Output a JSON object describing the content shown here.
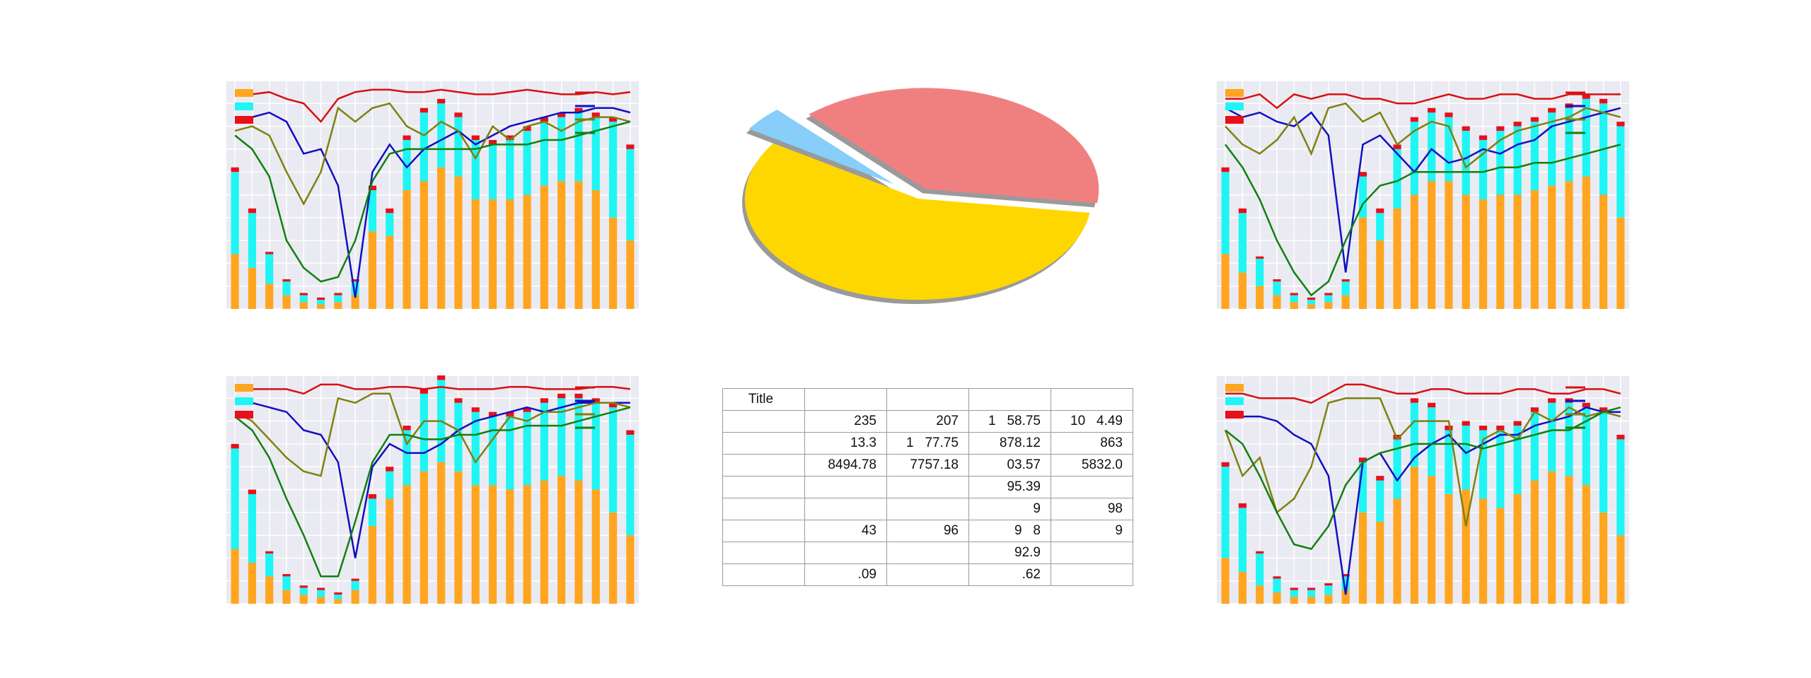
{
  "chart_data": [
    {
      "type": "combo",
      "categories": [
        null,
        null,
        null,
        null,
        null,
        null,
        null,
        null,
        null,
        null,
        null,
        null,
        null,
        null,
        null,
        null,
        null,
        null,
        null,
        null,
        null,
        null,
        null,
        null
      ],
      "ylim": [
        0,
        100
      ],
      "yticks": [
        0,
        10,
        20,
        30,
        40,
        50,
        60,
        70,
        80,
        90,
        100
      ],
      "grid": true,
      "series": [
        {
          "type": "bar",
          "color": "#ffa51f",
          "values": [
            24,
            18,
            11,
            6,
            3,
            2,
            3,
            6,
            34,
            32,
            52,
            56,
            62,
            58,
            48,
            48,
            48,
            50,
            54,
            56,
            56,
            52,
            40,
            30
          ]
        },
        {
          "type": "bar",
          "color": "#1ff5f5",
          "values": [
            36,
            24,
            13,
            6,
            3,
            2,
            3,
            6,
            18,
            10,
            22,
            30,
            28,
            26,
            26,
            24,
            26,
            28,
            28,
            28,
            30,
            32,
            42,
            40
          ]
        },
        {
          "type": "bar",
          "color": "#e8101a",
          "values": [
            2,
            2,
            1,
            1,
            1,
            1,
            1,
            1,
            2,
            2,
            2,
            2,
            2,
            2,
            2,
            2,
            2,
            2,
            2,
            2,
            2,
            2,
            2,
            2
          ]
        },
        {
          "type": "line",
          "color": "#d81010",
          "values": [
            94,
            94,
            95,
            92,
            90,
            82,
            92,
            95,
            96,
            96,
            95,
            95,
            96,
            95,
            94,
            94,
            95,
            96,
            95,
            94,
            94,
            95,
            94,
            95
          ]
        },
        {
          "type": "line",
          "color": "#1010c0",
          "values": [
            84,
            84,
            86,
            82,
            68,
            70,
            54,
            5,
            60,
            72,
            62,
            70,
            74,
            78,
            72,
            76,
            80,
            82,
            84,
            86,
            86,
            88,
            88,
            86
          ]
        },
        {
          "type": "line",
          "color": "#808010",
          "values": [
            78,
            80,
            76,
            60,
            46,
            60,
            88,
            82,
            88,
            90,
            80,
            76,
            82,
            78,
            66,
            80,
            74,
            80,
            82,
            78,
            82,
            84,
            84,
            82
          ]
        },
        {
          "type": "line",
          "color": "#108010",
          "values": [
            76,
            70,
            58,
            30,
            18,
            12,
            14,
            30,
            56,
            68,
            70,
            70,
            70,
            70,
            70,
            72,
            72,
            72,
            74,
            74,
            76,
            78,
            80,
            82
          ]
        }
      ]
    },
    {
      "type": "pie",
      "values": [
        39,
        4,
        57
      ],
      "colors": [
        "#f08080",
        "#87cefa",
        "#ffd700"
      ]
    },
    {
      "type": "combo",
      "categories": [
        null,
        null,
        null,
        null,
        null,
        null,
        null,
        null,
        null,
        null,
        null,
        null,
        null,
        null,
        null,
        null,
        null,
        null,
        null,
        null,
        null,
        null,
        null,
        null
      ],
      "ylim": [
        0,
        100
      ],
      "yticks": [
        0,
        10,
        20,
        30,
        40,
        50,
        60,
        70,
        80,
        90,
        100
      ],
      "grid": true,
      "series": [
        {
          "type": "bar",
          "color": "#ffa51f",
          "values": [
            24,
            16,
            10,
            6,
            3,
            2,
            3,
            6,
            40,
            30,
            44,
            50,
            56,
            56,
            50,
            48,
            50,
            50,
            52,
            54,
            56,
            58,
            50,
            40
          ]
        },
        {
          "type": "bar",
          "color": "#1ff5f5",
          "values": [
            36,
            26,
            12,
            6,
            3,
            2,
            3,
            6,
            18,
            12,
            26,
            32,
            30,
            28,
            28,
            26,
            28,
            30,
            30,
            32,
            32,
            34,
            40,
            40
          ]
        },
        {
          "type": "bar",
          "color": "#e8101a",
          "values": [
            2,
            2,
            1,
            1,
            1,
            1,
            1,
            1,
            2,
            2,
            2,
            2,
            2,
            2,
            2,
            2,
            2,
            2,
            2,
            2,
            2,
            2,
            2,
            2
          ]
        },
        {
          "type": "line",
          "color": "#d81010",
          "values": [
            92,
            92,
            94,
            88,
            94,
            92,
            94,
            94,
            92,
            92,
            90,
            90,
            92,
            94,
            92,
            92,
            94,
            94,
            92,
            92,
            94,
            94,
            94,
            94
          ]
        },
        {
          "type": "line",
          "color": "#1010c0",
          "values": [
            88,
            84,
            86,
            82,
            80,
            86,
            76,
            16,
            72,
            76,
            68,
            60,
            70,
            64,
            66,
            70,
            68,
            72,
            74,
            80,
            82,
            84,
            86,
            88
          ]
        },
        {
          "type": "line",
          "color": "#808010",
          "values": [
            80,
            72,
            68,
            74,
            84,
            68,
            88,
            90,
            82,
            86,
            72,
            78,
            82,
            80,
            62,
            68,
            74,
            78,
            80,
            82,
            84,
            88,
            86,
            84
          ]
        },
        {
          "type": "line",
          "color": "#108010",
          "values": [
            72,
            62,
            48,
            30,
            16,
            6,
            12,
            30,
            46,
            54,
            56,
            60,
            60,
            60,
            60,
            60,
            62,
            62,
            64,
            64,
            66,
            68,
            70,
            72
          ]
        }
      ]
    },
    {
      "type": "combo",
      "categories": [
        null,
        null,
        null,
        null,
        null,
        null,
        null,
        null,
        null,
        null,
        null,
        null,
        null,
        null,
        null,
        null,
        null,
        null,
        null,
        null,
        null,
        null,
        null,
        null
      ],
      "ylim": [
        0,
        100
      ],
      "yticks": [
        0,
        10,
        20,
        30,
        40,
        50,
        60,
        70,
        80,
        90,
        100
      ],
      "grid": true,
      "series": [
        {
          "type": "bar",
          "color": "#ffa51f",
          "values": [
            24,
            18,
            12,
            6,
            4,
            3,
            2,
            6,
            34,
            46,
            52,
            58,
            62,
            58,
            52,
            52,
            50,
            52,
            54,
            56,
            54,
            50,
            40,
            30
          ]
        },
        {
          "type": "bar",
          "color": "#1ff5f5",
          "values": [
            44,
            30,
            10,
            6,
            3,
            3,
            2,
            4,
            12,
            12,
            24,
            34,
            36,
            30,
            32,
            30,
            32,
            32,
            34,
            34,
            36,
            38,
            46,
            44
          ]
        },
        {
          "type": "bar",
          "color": "#e8101a",
          "values": [
            2,
            2,
            1,
            1,
            1,
            1,
            1,
            1,
            2,
            2,
            2,
            2,
            2,
            2,
            2,
            2,
            2,
            2,
            2,
            2,
            2,
            2,
            2,
            2
          ]
        },
        {
          "type": "line",
          "color": "#d81010",
          "values": [
            94,
            94,
            94,
            94,
            92,
            96,
            96,
            94,
            94,
            95,
            95,
            94,
            95,
            94,
            94,
            94,
            95,
            95,
            94,
            94,
            94,
            95,
            95,
            94
          ]
        },
        {
          "type": "line",
          "color": "#1010c0",
          "values": [
            90,
            88,
            86,
            84,
            76,
            74,
            62,
            20,
            60,
            70,
            66,
            66,
            70,
            76,
            80,
            82,
            84,
            86,
            84,
            86,
            88,
            88,
            88,
            88
          ]
        },
        {
          "type": "line",
          "color": "#808010",
          "values": [
            84,
            80,
            72,
            64,
            58,
            56,
            90,
            88,
            92,
            92,
            70,
            80,
            80,
            76,
            62,
            72,
            82,
            80,
            84,
            84,
            86,
            88,
            88,
            86
          ]
        },
        {
          "type": "line",
          "color": "#108010",
          "values": [
            82,
            76,
            64,
            46,
            30,
            12,
            12,
            36,
            62,
            74,
            74,
            72,
            72,
            74,
            74,
            76,
            76,
            78,
            78,
            78,
            80,
            82,
            84,
            86
          ]
        }
      ]
    },
    {
      "type": "combo",
      "categories": [
        null,
        null,
        null,
        null,
        null,
        null,
        null,
        null,
        null,
        null,
        null,
        null,
        null,
        null,
        null,
        null,
        null,
        null,
        null,
        null,
        null,
        null,
        null,
        null
      ],
      "ylim": [
        0,
        100
      ],
      "yticks": [
        0,
        10,
        20,
        30,
        40,
        50,
        60,
        70,
        80,
        90,
        100
      ],
      "grid": true,
      "series": [
        {
          "type": "bar",
          "color": "#ffa51f",
          "values": [
            20,
            14,
            8,
            5,
            3,
            3,
            4,
            6,
            40,
            36,
            46,
            60,
            56,
            48,
            50,
            46,
            42,
            48,
            54,
            58,
            56,
            52,
            40,
            30
          ]
        },
        {
          "type": "bar",
          "color": "#1ff5f5",
          "values": [
            40,
            28,
            14,
            6,
            3,
            3,
            4,
            6,
            22,
            18,
            26,
            28,
            30,
            28,
            28,
            30,
            34,
            30,
            30,
            30,
            32,
            34,
            44,
            42
          ]
        },
        {
          "type": "bar",
          "color": "#e8101a",
          "values": [
            2,
            2,
            1,
            1,
            1,
            1,
            1,
            1,
            2,
            2,
            2,
            2,
            2,
            2,
            2,
            2,
            2,
            2,
            2,
            2,
            2,
            2,
            2,
            2
          ]
        },
        {
          "type": "line",
          "color": "#d81010",
          "values": [
            92,
            92,
            90,
            90,
            90,
            88,
            92,
            96,
            96,
            94,
            92,
            92,
            94,
            94,
            92,
            92,
            92,
            94,
            94,
            92,
            92,
            94,
            94,
            92
          ]
        },
        {
          "type": "line",
          "color": "#1010c0",
          "values": [
            82,
            82,
            82,
            80,
            74,
            70,
            56,
            4,
            62,
            66,
            54,
            64,
            70,
            74,
            66,
            70,
            74,
            74,
            78,
            80,
            82,
            86,
            84,
            84
          ]
        },
        {
          "type": "line",
          "color": "#808010",
          "values": [
            76,
            56,
            64,
            40,
            46,
            60,
            88,
            90,
            90,
            90,
            72,
            80,
            80,
            80,
            34,
            72,
            76,
            72,
            84,
            80,
            86,
            82,
            84,
            82
          ]
        },
        {
          "type": "line",
          "color": "#108010",
          "values": [
            76,
            70,
            56,
            40,
            26,
            24,
            34,
            52,
            62,
            66,
            68,
            70,
            70,
            70,
            70,
            68,
            70,
            72,
            74,
            76,
            76,
            80,
            84,
            86
          ]
        }
      ]
    }
  ],
  "table": {
    "rows": [
      [
        "Title",
        null,
        null,
        null,
        null
      ],
      [
        null,
        "235",
        "207",
        "1   58.75",
        "10   4.49"
      ],
      [
        null,
        "13.3",
        "1   77.75",
        "878.12",
        "863"
      ],
      [
        null,
        "8494.78",
        "7757.18",
        "03.57",
        "5832.0"
      ],
      [
        null,
        null,
        null,
        "95.39",
        null
      ],
      [
        null,
        null,
        null,
        "9",
        "98"
      ],
      [
        null,
        "43",
        "96",
        "9   8",
        "9"
      ],
      [
        null,
        null,
        null,
        "92.9",
        null
      ],
      [
        null,
        ".09",
        null,
        ".62",
        null
      ]
    ]
  }
}
